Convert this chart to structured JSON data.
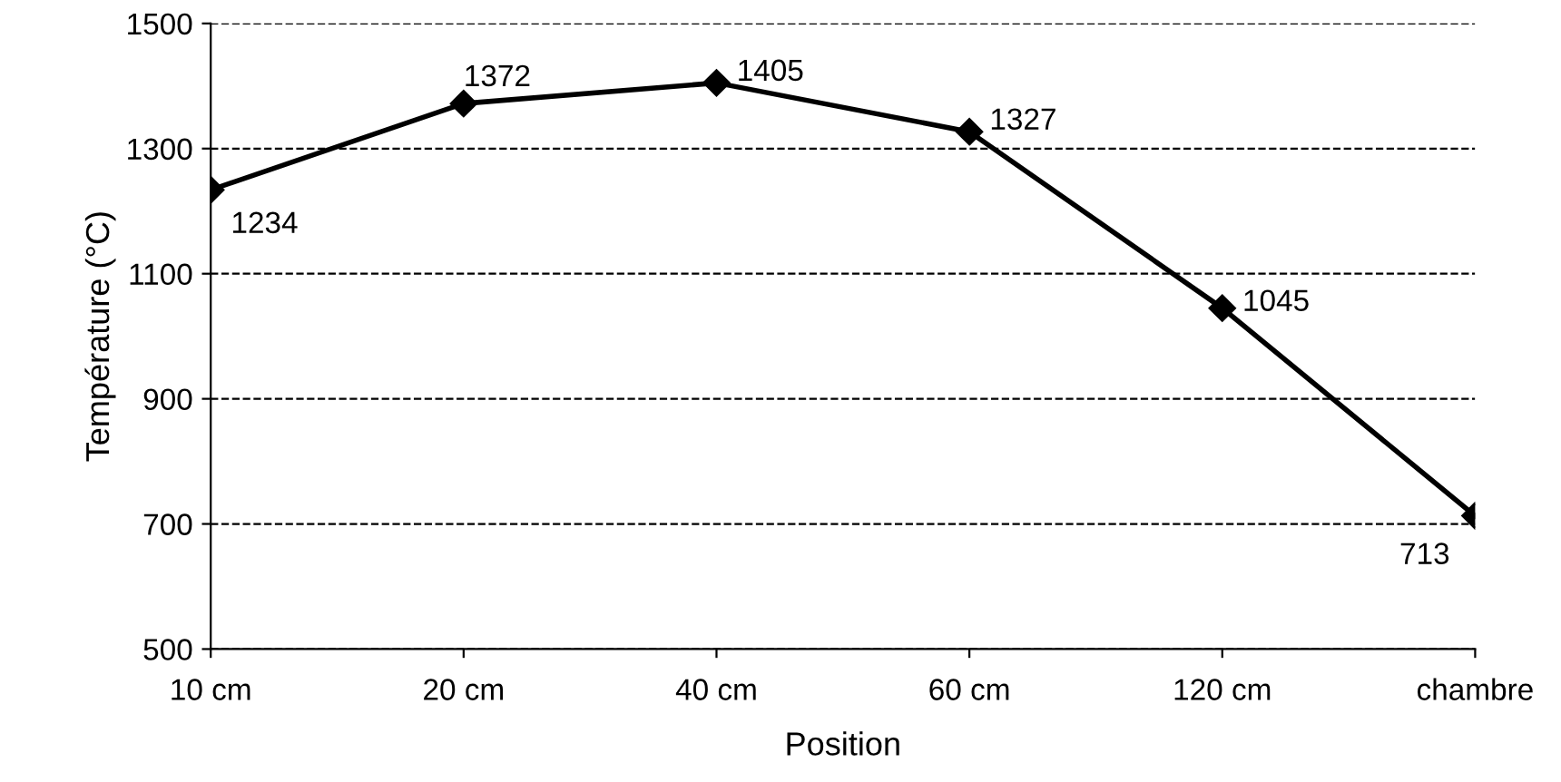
{
  "chart_data": {
    "type": "line",
    "xlabel": "Position",
    "ylabel": "Température (°C)",
    "categories": [
      "10 cm",
      "20 cm",
      "40 cm",
      "60 cm",
      "120 cm",
      "chambre"
    ],
    "series": [
      {
        "color": "#000000",
        "values": [
          1234,
          1372,
          1405,
          1327,
          1045,
          713
        ]
      }
    ],
    "ylim": [
      500,
      1500
    ],
    "yticks": [
      500,
      700,
      900,
      1100,
      1300,
      1500
    ],
    "grid": "y",
    "marker": "diamond",
    "line_style": "solid",
    "data_labels": true
  }
}
